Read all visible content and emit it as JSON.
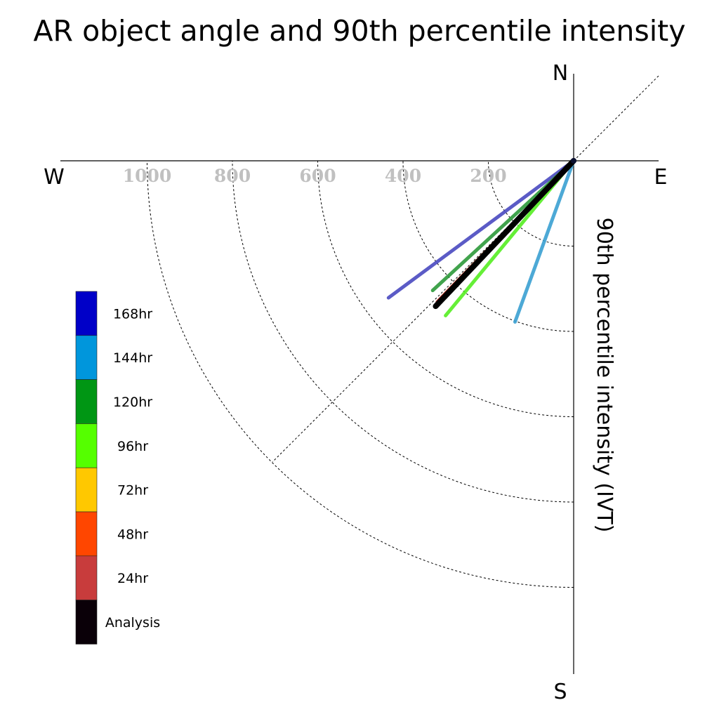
{
  "chart_data": {
    "type": "polar-vector",
    "title": "AR object angle and 90th percentile intensity",
    "ylabel": "90th percentile intensity (IVT)",
    "directions": {
      "north": "N",
      "south": "S",
      "east": "E",
      "west": "W"
    },
    "radial_ticks": [
      200,
      400,
      600,
      800,
      1000
    ],
    "radial_tick_labels": [
      "200",
      "400",
      "600",
      "800",
      "1000"
    ],
    "rmax": 1200,
    "grid": true,
    "legend_position": "left",
    "series": [
      {
        "name": "168hr",
        "color": "#0000c8",
        "line_color": "#4a4ac0",
        "angle_deg": 233.5,
        "intensity": 540
      },
      {
        "name": "144hr",
        "color": "#0096dc",
        "line_color": "#3aa0d2",
        "angle_deg": 200.0,
        "intensity": 402
      },
      {
        "name": "120hr",
        "color": "#009614",
        "line_color": "#2d9a3a",
        "angle_deg": 227.4,
        "intensity": 449
      },
      {
        "name": "96hr",
        "color": "#55ff00",
        "line_color": "#55ee22",
        "angle_deg": 219.6,
        "intensity": 471
      },
      {
        "name": "72hr",
        "color": "#ffc800",
        "line_color": "#f5c020",
        "angle_deg": 224.0,
        "intensity": 442
      },
      {
        "name": "48hr",
        "color": "#ff4600",
        "line_color": "#e04a20",
        "angle_deg": 224.0,
        "intensity": 455
      },
      {
        "name": "24hr",
        "color": "#c83c3c",
        "line_color": "#c03838",
        "angle_deg": 224.0,
        "intensity": 460
      },
      {
        "name": "Analysis",
        "color": "#0a0008",
        "line_color": "#000000",
        "angle_deg": 223.5,
        "intensity": 470
      }
    ]
  }
}
